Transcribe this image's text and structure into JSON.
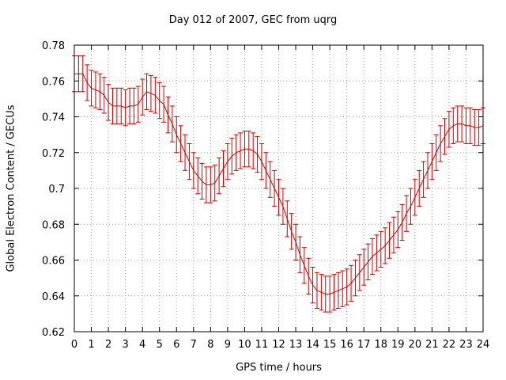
{
  "chart_data": {
    "type": "line",
    "title": "Day 012 of 2007, GEC from uqrg",
    "xlabel": "GPS time / hours",
    "ylabel": "Global Electron Content / GECUs",
    "xlim": [
      0,
      24
    ],
    "ylim": [
      0.62,
      0.78
    ],
    "xticks": [
      "0",
      "1",
      "2",
      "3",
      "4",
      "5",
      "6",
      "7",
      "8",
      "9",
      "10",
      "11",
      "12",
      "13",
      "14",
      "15",
      "16",
      "17",
      "18",
      "19",
      "20",
      "21",
      "22",
      "23",
      "24"
    ],
    "yticks": [
      "0.62",
      "0.64",
      "0.66",
      "0.68",
      "0.7",
      "0.72",
      "0.74",
      "0.76",
      "0.78"
    ],
    "grid": true,
    "legend": "none",
    "colors": {
      "series": "#cc0000",
      "grid": "#a0a0a0",
      "axis": "#000000"
    },
    "series": [
      {
        "x": [
          0,
          0.25,
          0.5,
          0.75,
          1,
          1.25,
          1.5,
          1.75,
          2,
          2.25,
          2.5,
          2.75,
          3,
          3.25,
          3.5,
          3.75,
          4,
          4.25,
          4.5,
          4.75,
          5,
          5.25,
          5.5,
          5.75,
          6,
          6.25,
          6.5,
          6.75,
          7,
          7.25,
          7.5,
          7.75,
          8,
          8.25,
          8.5,
          8.75,
          9,
          9.25,
          9.5,
          9.75,
          10,
          10.25,
          10.5,
          10.75,
          11,
          11.25,
          11.5,
          11.75,
          12,
          12.25,
          12.5,
          12.75,
          13,
          13.25,
          13.5,
          13.75,
          14,
          14.25,
          14.5,
          14.75,
          15,
          15.25,
          15.5,
          15.75,
          16,
          16.25,
          16.5,
          16.75,
          17,
          17.25,
          17.5,
          17.75,
          18,
          18.25,
          18.5,
          18.75,
          19,
          19.25,
          19.5,
          19.75,
          20,
          20.25,
          20.5,
          20.75,
          21,
          21.25,
          21.5,
          21.75,
          22,
          22.25,
          22.5,
          22.75,
          23,
          23.25,
          23.5,
          23.75,
          24
        ],
        "y": [
          0.764,
          0.764,
          0.764,
          0.759,
          0.756,
          0.755,
          0.754,
          0.752,
          0.748,
          0.746,
          0.746,
          0.746,
          0.745,
          0.746,
          0.746,
          0.747,
          0.751,
          0.754,
          0.753,
          0.752,
          0.749,
          0.747,
          0.741,
          0.736,
          0.73,
          0.725,
          0.72,
          0.715,
          0.71,
          0.707,
          0.704,
          0.702,
          0.702,
          0.703,
          0.707,
          0.711,
          0.715,
          0.718,
          0.72,
          0.721,
          0.722,
          0.722,
          0.721,
          0.719,
          0.715,
          0.71,
          0.705,
          0.7,
          0.695,
          0.69,
          0.683,
          0.676,
          0.67,
          0.663,
          0.657,
          0.651,
          0.646,
          0.643,
          0.642,
          0.641,
          0.641,
          0.642,
          0.643,
          0.644,
          0.645,
          0.647,
          0.65,
          0.653,
          0.656,
          0.659,
          0.662,
          0.664,
          0.666,
          0.668,
          0.671,
          0.674,
          0.677,
          0.681,
          0.686,
          0.69,
          0.695,
          0.7,
          0.705,
          0.71,
          0.715,
          0.72,
          0.725,
          0.729,
          0.733,
          0.735,
          0.736,
          0.736,
          0.735,
          0.735,
          0.734,
          0.734,
          0.735
        ],
        "error": 0.01
      }
    ]
  }
}
